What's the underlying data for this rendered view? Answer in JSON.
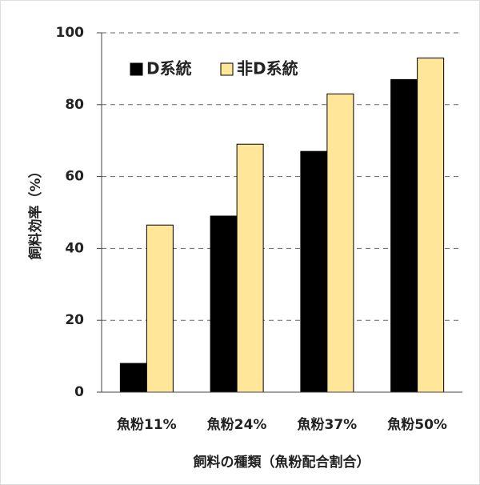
{
  "chart_data": {
    "type": "bar",
    "categories": [
      "魚粉11%",
      "魚粉24%",
      "魚粉37%",
      "魚粉50%"
    ],
    "series": [
      {
        "name": "D系統",
        "color": "#000000",
        "values": [
          8,
          49,
          67,
          87
        ]
      },
      {
        "name": "非D系統",
        "color": "#ffe699",
        "values": [
          46.5,
          69,
          83,
          93
        ]
      }
    ],
    "x_label": "飼料の種類（魚粉配合割合）",
    "y_label": "飼料効率（%）",
    "ylim": [
      0,
      100
    ],
    "yticks": [
      0,
      20,
      40,
      60,
      80,
      100
    ],
    "grid": true
  }
}
